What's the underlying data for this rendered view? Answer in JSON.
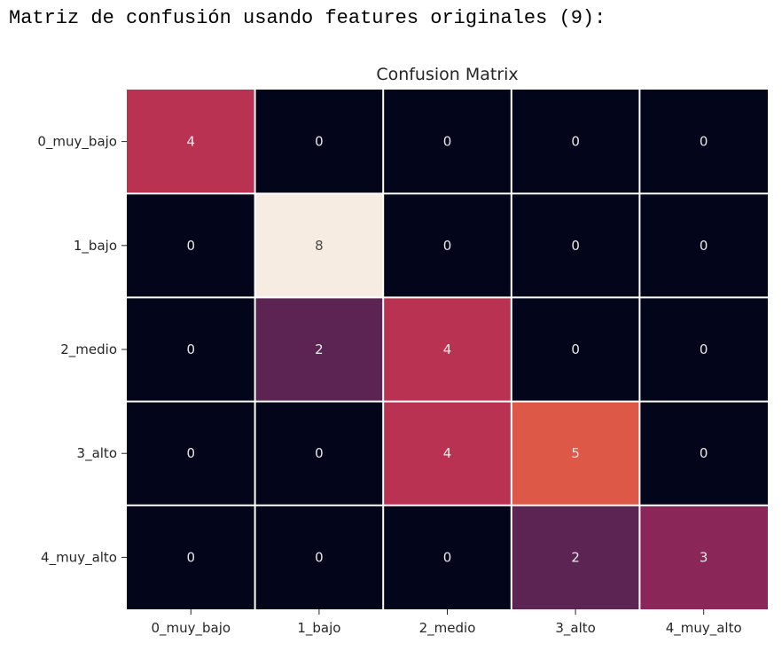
{
  "output_header": "Matriz de confusión usando features originales (9):",
  "chart_data": {
    "type": "heatmap",
    "title": "Confusion Matrix",
    "row_labels": [
      "0_muy_bajo",
      "1_bajo",
      "2_medio",
      "3_alto",
      "4_muy_alto"
    ],
    "col_labels": [
      "0_muy_bajo",
      "1_bajo",
      "2_medio",
      "3_alto",
      "4_muy_alto"
    ],
    "values": [
      [
        4,
        0,
        0,
        0,
        0
      ],
      [
        0,
        8,
        0,
        0,
        0
      ],
      [
        0,
        2,
        4,
        0,
        0
      ],
      [
        0,
        0,
        4,
        5,
        0
      ],
      [
        0,
        0,
        0,
        2,
        3
      ]
    ],
    "colormap": "rocket",
    "vmin": 0,
    "vmax": 8,
    "grid_color": "#ffffff",
    "colorbar": false
  }
}
